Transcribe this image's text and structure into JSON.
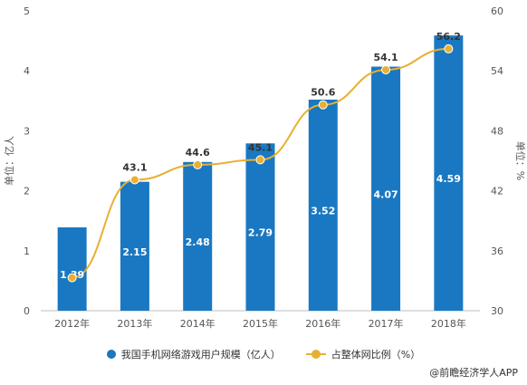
{
  "chart_data": {
    "type": "bar+line",
    "categories": [
      "2012年",
      "2013年",
      "2014年",
      "2015年",
      "2016年",
      "2017年",
      "2018年"
    ],
    "series": [
      {
        "name": "我国手机网络游戏用户规模（亿人）",
        "type": "bar",
        "axis": "left",
        "values": [
          1.39,
          2.15,
          2.48,
          2.79,
          3.52,
          4.07,
          4.59
        ],
        "labels": [
          "1.39",
          "2.15",
          "2.48",
          "2.79",
          "3.52",
          "4.07",
          "4.59"
        ],
        "color": "#1a78c2"
      },
      {
        "name": "占整体网比例（%）",
        "type": "line",
        "axis": "right",
        "values": [
          33.3,
          43.1,
          44.6,
          45.1,
          50.6,
          54.1,
          56.2
        ],
        "labels": [
          "",
          "43.1",
          "44.6",
          "45.1",
          "50.6",
          "54.1",
          "56.2"
        ],
        "color": "#e8b032"
      }
    ],
    "y_left": {
      "label": "单位：亿人",
      "min": 0,
      "max": 5,
      "ticks": [
        "0",
        "1",
        "2",
        "3",
        "4",
        "5"
      ]
    },
    "y_right": {
      "label": "单位：%",
      "min": 30,
      "max": 60,
      "ticks": [
        "30",
        "36",
        "42",
        "48",
        "54",
        "60"
      ]
    },
    "grid": false,
    "legend_position": "bottom"
  },
  "source": "@前瞻经济学人APP"
}
